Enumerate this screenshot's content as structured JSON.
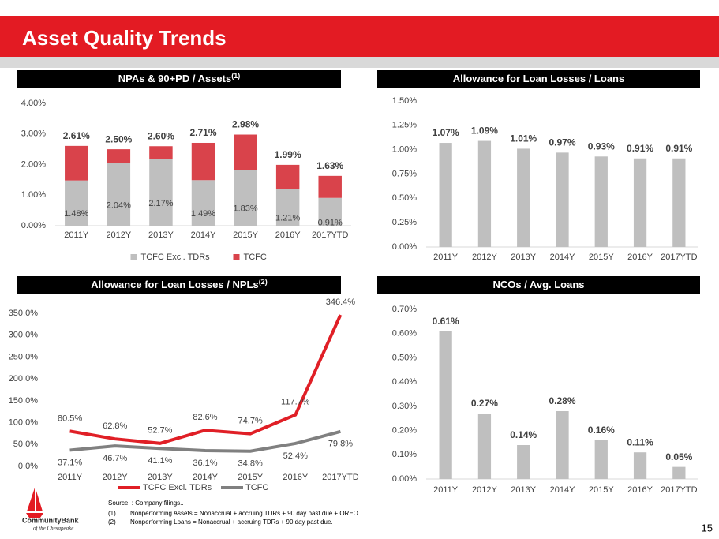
{
  "header": {
    "title": "Asset Quality Trends"
  },
  "chart_data": [
    {
      "type": "stacked_bar",
      "title": "NPAs & 90+PD / Assets",
      "title_sup": "(1)",
      "categories": [
        "2011Y",
        "2012Y",
        "2013Y",
        "2014Y",
        "2015Y",
        "2016Y",
        "2017YTD"
      ],
      "series": [
        {
          "name": "TCFC Excl. TDRs",
          "color": "#bfbfbf",
          "values": [
            1.48,
            2.04,
            2.17,
            1.49,
            1.83,
            1.21,
            0.91
          ],
          "value_labels": [
            "1.48%",
            "2.04%",
            "2.17%",
            "1.49%",
            "1.83%",
            "1.21%",
            "0.91%"
          ]
        },
        {
          "name": "TCFC",
          "color": "#d9434b",
          "values": [
            1.13,
            0.46,
            0.43,
            1.22,
            1.15,
            0.78,
            0.72
          ]
        }
      ],
      "totals": [
        2.61,
        2.5,
        2.6,
        2.71,
        2.98,
        1.99,
        1.63
      ],
      "total_labels": [
        "2.61%",
        "2.50%",
        "2.60%",
        "2.71%",
        "2.98%",
        "1.99%",
        "1.63%"
      ],
      "ylim": [
        0,
        4
      ],
      "yticks": [
        {
          "value": 0,
          "label": "0.00%"
        },
        {
          "value": 1,
          "label": "1.00%"
        },
        {
          "value": 2,
          "label": "2.00%"
        },
        {
          "value": 3,
          "label": "3.00%"
        },
        {
          "value": 4,
          "label": "4.00%"
        }
      ],
      "grid": false,
      "legend": "bottom"
    },
    {
      "type": "bar",
      "title": "Allowance for Loan Losses / Loans",
      "color": "#bfbfbf",
      "categories": [
        "2011Y",
        "2012Y",
        "2013Y",
        "2014Y",
        "2015Y",
        "2016Y",
        "2017YTD"
      ],
      "values": [
        1.07,
        1.09,
        1.01,
        0.97,
        0.93,
        0.91,
        0.91
      ],
      "value_labels": [
        "1.07%",
        "1.09%",
        "1.01%",
        "0.97%",
        "0.93%",
        "0.91%",
        "0.91%"
      ],
      "ylim": [
        0,
        1.5
      ],
      "yticks": [
        {
          "value": 0,
          "label": "0.00%"
        },
        {
          "value": 0.25,
          "label": "0.25%"
        },
        {
          "value": 0.5,
          "label": "0.50%"
        },
        {
          "value": 0.75,
          "label": "0.75%"
        },
        {
          "value": 1,
          "label": "1.00%"
        },
        {
          "value": 1.25,
          "label": "1.25%"
        },
        {
          "value": 1.5,
          "label": "1.50%"
        }
      ],
      "grid": false
    },
    {
      "type": "line",
      "title": "Allowance for Loan Losses / NPLs",
      "title_sup": "(2)",
      "categories": [
        "2011Y",
        "2012Y",
        "2013Y",
        "2014Y",
        "2015Y",
        "2016Y",
        "2017YTD"
      ],
      "series": [
        {
          "name": "TCFC Excl. TDRs",
          "color": "#e01f26",
          "values": [
            80.5,
            62.8,
            52.7,
            82.6,
            74.7,
            117.7,
            346.4
          ],
          "value_labels": [
            "80.5%",
            "62.8%",
            "52.7%",
            "82.6%",
            "74.7%",
            "117.7%",
            "346.4%"
          ]
        },
        {
          "name": "TCFC",
          "color": "#808080",
          "values": [
            37.1,
            46.7,
            41.1,
            36.1,
            34.8,
            52.4,
            79.8
          ],
          "value_labels": [
            "37.1%",
            "46.7%",
            "41.1%",
            "36.1%",
            "34.8%",
            "52.4%",
            "79.8%"
          ]
        }
      ],
      "ylim": [
        0,
        350
      ],
      "yticks": [
        {
          "value": 0,
          "label": "0.0%"
        },
        {
          "value": 50,
          "label": "50.0%"
        },
        {
          "value": 100,
          "label": "100.0%"
        },
        {
          "value": 150,
          "label": "150.0%"
        },
        {
          "value": 200,
          "label": "200.0%"
        },
        {
          "value": 250,
          "label": "250.0%"
        },
        {
          "value": 300,
          "label": "300.0%"
        },
        {
          "value": 350,
          "label": "350.0%"
        }
      ],
      "grid": false,
      "legend": "bottom"
    },
    {
      "type": "bar",
      "title": "NCOs / Avg. Loans",
      "color": "#bfbfbf",
      "categories": [
        "2011Y",
        "2012Y",
        "2013Y",
        "2014Y",
        "2015Y",
        "2016Y",
        "2017YTD"
      ],
      "values": [
        0.61,
        0.27,
        0.14,
        0.28,
        0.16,
        0.11,
        0.05
      ],
      "value_labels": [
        "0.61%",
        "0.27%",
        "0.14%",
        "0.28%",
        "0.16%",
        "0.11%",
        "0.05%"
      ],
      "ylim": [
        0,
        0.7
      ],
      "yticks": [
        {
          "value": 0,
          "label": "0.00%"
        },
        {
          "value": 0.1,
          "label": "0.10%"
        },
        {
          "value": 0.2,
          "label": "0.20%"
        },
        {
          "value": 0.3,
          "label": "0.30%"
        },
        {
          "value": 0.4,
          "label": "0.40%"
        },
        {
          "value": 0.5,
          "label": "0.50%"
        },
        {
          "value": 0.6,
          "label": "0.60%"
        },
        {
          "value": 0.7,
          "label": "0.70%"
        }
      ],
      "grid": false
    }
  ],
  "footer": {
    "source": "Source: : Company filings..",
    "notes": [
      {
        "mark": "(1)",
        "text": "Nonperforming Assets = Nonaccrual + accruing TDRs + 90 day past due + OREO."
      },
      {
        "mark": "(2)",
        "text": "Nonperforming Loans = Nonaccrual + accruing TDRs + 90 day past due."
      }
    ],
    "logo_name": "CommunityBank",
    "logo_sub": "of the Chesapeake",
    "page": "15"
  }
}
